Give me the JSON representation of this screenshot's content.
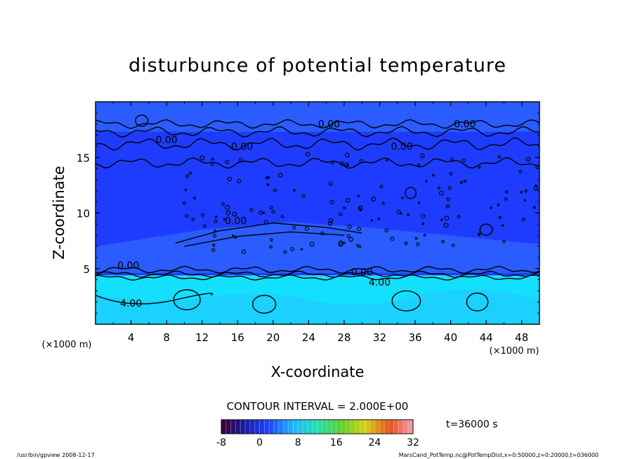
{
  "chart_data": {
    "type": "heatmap",
    "title": "disturbunce of potential temperature",
    "xlabel": "X-coordinate",
    "ylabel": "Z-coordinate",
    "x_units": "(×1000 m)",
    "z_units": "(×1000 m)",
    "xlim": [
      0,
      50
    ],
    "zlim": [
      0,
      20
    ],
    "x_ticks": [
      "4",
      "8",
      "12",
      "16",
      "20",
      "24",
      "28",
      "32",
      "36",
      "40",
      "44",
      "48"
    ],
    "z_ticks": [
      "5",
      "10",
      "15"
    ],
    "colors": {
      "dark_blue": "#1e3cff",
      "mid_blue": "#2a5cff",
      "cyan": "#13e0ff",
      "light_cyan": "#22c4ff"
    },
    "contour_labels": [
      {
        "text": "0.00",
        "x": 26.3,
        "z": 18.0
      },
      {
        "text": "0.00",
        "x": 41.6,
        "z": 18.0
      },
      {
        "text": "0.00",
        "x": 8.0,
        "z": 16.6
      },
      {
        "text": "0.00",
        "x": 16.5,
        "z": 16.0
      },
      {
        "text": "0.00",
        "x": 34.5,
        "z": 16.0
      },
      {
        "text": "0.00",
        "x": 15.8,
        "z": 9.3
      },
      {
        "text": "0.00",
        "x": 3.7,
        "z": 5.3
      },
      {
        "text": "0.00",
        "x": 30.0,
        "z": 4.7
      },
      {
        "text": "4.00",
        "x": 32.0,
        "z": 3.8
      },
      {
        "text": "4.00",
        "x": 4.0,
        "z": 1.9
      }
    ],
    "contour_interval": "CONTOUR INTERVAL = 2.000E+00",
    "colorbar": {
      "min": -8,
      "max": 32,
      "ticks": [
        "-8",
        "0",
        "8",
        "16",
        "24",
        "32"
      ]
    },
    "time_label": "t=36000 s"
  },
  "footer": {
    "left": "/usr/bin/gpview  2008-12-17",
    "right": "MarsCand_PotTemp.nc@PotTempDist,x=0:50000,z=0:20000,t=036000"
  }
}
